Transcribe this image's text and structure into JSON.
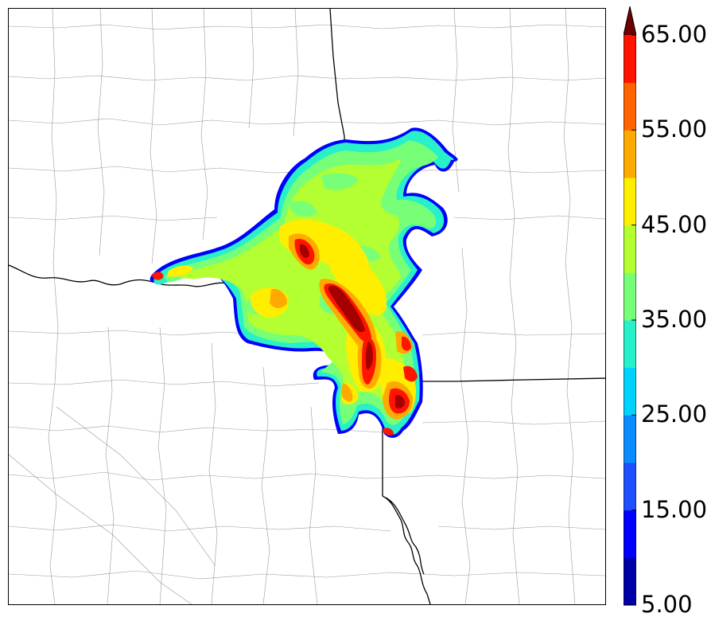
{
  "map": {
    "basemap_line_color": "#9a9a9a",
    "state_line_color": "#000000"
  },
  "colorbar": {
    "min": 5,
    "max": 70,
    "step": 5,
    "extend": "max",
    "colors": [
      "#0000a8",
      "#0000ff",
      "#1e50ff",
      "#0a8cff",
      "#00d2ff",
      "#28f0c8",
      "#78ff78",
      "#b4ff32",
      "#ffee00",
      "#ffaa00",
      "#ff6400",
      "#ff1400",
      "#a50000",
      "#6e0000"
    ],
    "tick_labels": [
      "5.00",
      "15.00",
      "25.00",
      "35.00",
      "45.00",
      "55.00",
      "65.00"
    ]
  }
}
